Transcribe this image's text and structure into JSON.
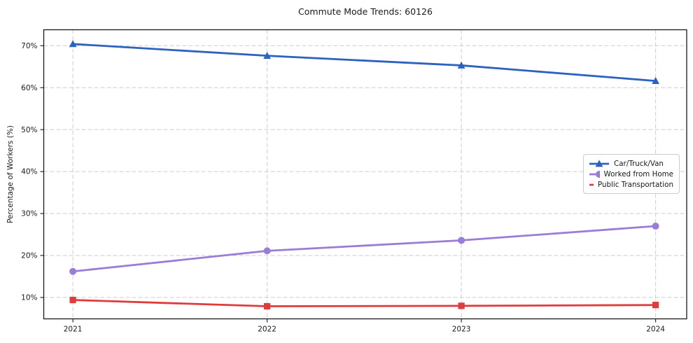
{
  "chart_data": {
    "type": "line",
    "title": "Commute Mode Trends: 60126",
    "xlabel": "",
    "ylabel": "Percentage of Workers (%)",
    "x": [
      2021,
      2022,
      2023,
      2024
    ],
    "x_tick_labels": [
      "2021",
      "2022",
      "2023",
      "2024"
    ],
    "y_ticks": [
      10,
      20,
      30,
      40,
      50,
      60,
      70
    ],
    "y_tick_labels": [
      "10%",
      "20%",
      "30%",
      "40%",
      "50%",
      "60%",
      "70%"
    ],
    "xlim": [
      2020.85,
      2024.16
    ],
    "ylim": [
      4.9,
      73.8
    ],
    "grid": true,
    "grid_style": "dashed",
    "grid_color": "#cdcdcd",
    "axis_color": "#1a1a1a",
    "legend_position": "center-right",
    "series": [
      {
        "name": "Car/Truck/Van",
        "color": "#2b63be",
        "marker": "triangle",
        "values": [
          70.4,
          67.6,
          65.3,
          61.6
        ]
      },
      {
        "name": "Worked from Home",
        "color": "#9b7cd6",
        "marker": "circle",
        "values": [
          16.2,
          21.1,
          23.6,
          27.0
        ]
      },
      {
        "name": "Public Transportation",
        "color": "#e03c3c",
        "marker": "square",
        "values": [
          9.4,
          7.9,
          8.0,
          8.2
        ]
      }
    ]
  }
}
